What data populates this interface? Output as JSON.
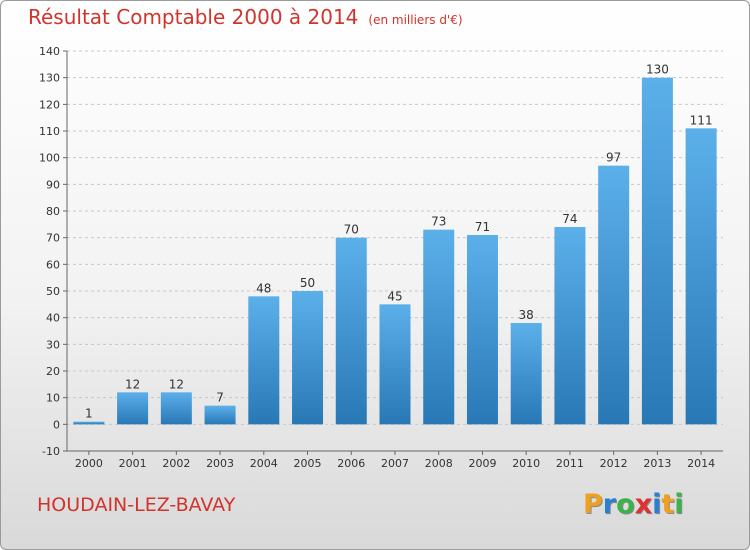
{
  "title": "Résultat Comptable 2000 à 2014",
  "unit": "(en milliers d'€)",
  "city": "HOUDAIN-LEZ-BAVAY",
  "logo": {
    "letters": [
      "P",
      "r",
      "o",
      "x",
      "i",
      "t",
      "i"
    ],
    "colors": [
      "#f0a020",
      "#2a7fd0",
      "#3cb24a",
      "#e03030",
      "#2a7fd0",
      "#f0a020",
      "#3cb24a"
    ]
  },
  "colors": {
    "bar_light": "#5cb0ea",
    "bar_dark": "#2878b6",
    "text": "#d0342c"
  },
  "chart_data": {
    "type": "bar",
    "categories": [
      "2000",
      "2001",
      "2002",
      "2003",
      "2004",
      "2005",
      "2006",
      "2007",
      "2008",
      "2009",
      "2010",
      "2011",
      "2012",
      "2013",
      "2014"
    ],
    "values": [
      1,
      12,
      12,
      7,
      48,
      50,
      70,
      45,
      73,
      71,
      38,
      74,
      97,
      130,
      111
    ],
    "yticks": [
      -10,
      0,
      10,
      20,
      30,
      40,
      50,
      60,
      70,
      80,
      90,
      100,
      110,
      120,
      130,
      140
    ],
    "ylim": [
      -10,
      140
    ],
    "grid": true,
    "title": "Résultat Comptable 2000 à 2014",
    "xlabel": "",
    "ylabel": ""
  }
}
